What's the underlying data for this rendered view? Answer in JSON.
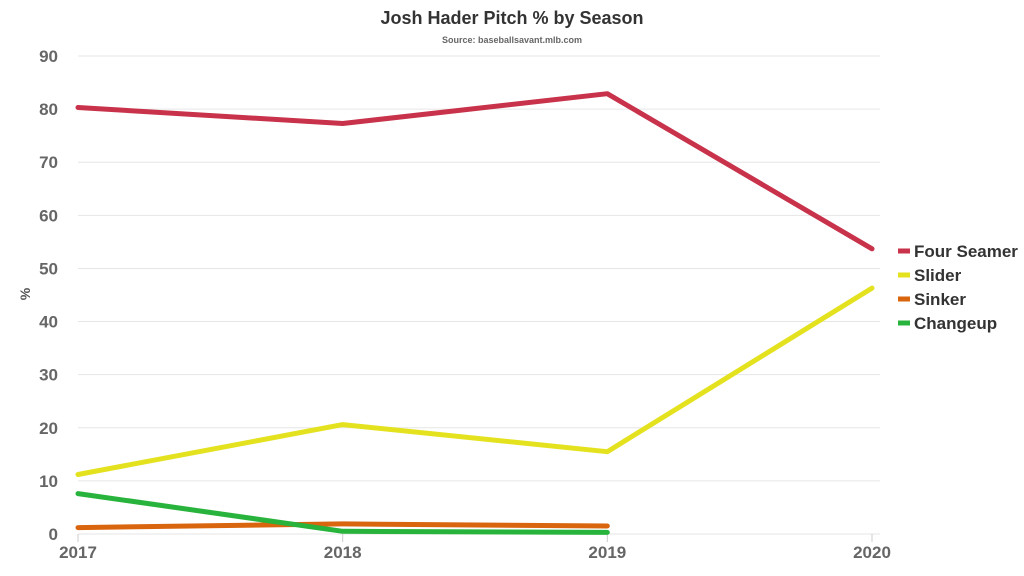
{
  "chart_data": {
    "type": "line",
    "title": "Josh Hader Pitch % by Season",
    "subtitle": "Source: baseballsavant.mlb.com",
    "xlabel": "",
    "ylabel": "%",
    "x": [
      "2017",
      "2018",
      "2019",
      "2020"
    ],
    "ylim": [
      0,
      90
    ],
    "yticks": [
      0,
      10,
      20,
      30,
      40,
      50,
      60,
      70,
      80,
      90
    ],
    "grid": true,
    "legend_position": "right",
    "series": [
      {
        "name": "Four Seamer",
        "color": "#c8324a",
        "values": [
          80.3,
          77.3,
          82.9,
          53.7
        ]
      },
      {
        "name": "Slider",
        "color": "#e4e21e",
        "values": [
          11.2,
          20.6,
          15.5,
          46.3
        ]
      },
      {
        "name": "Sinker",
        "color": "#d9650f",
        "values": [
          1.2,
          1.9,
          1.5,
          null
        ]
      },
      {
        "name": "Changeup",
        "color": "#28b33c",
        "values": [
          7.6,
          0.5,
          0.3,
          null
        ]
      }
    ]
  }
}
